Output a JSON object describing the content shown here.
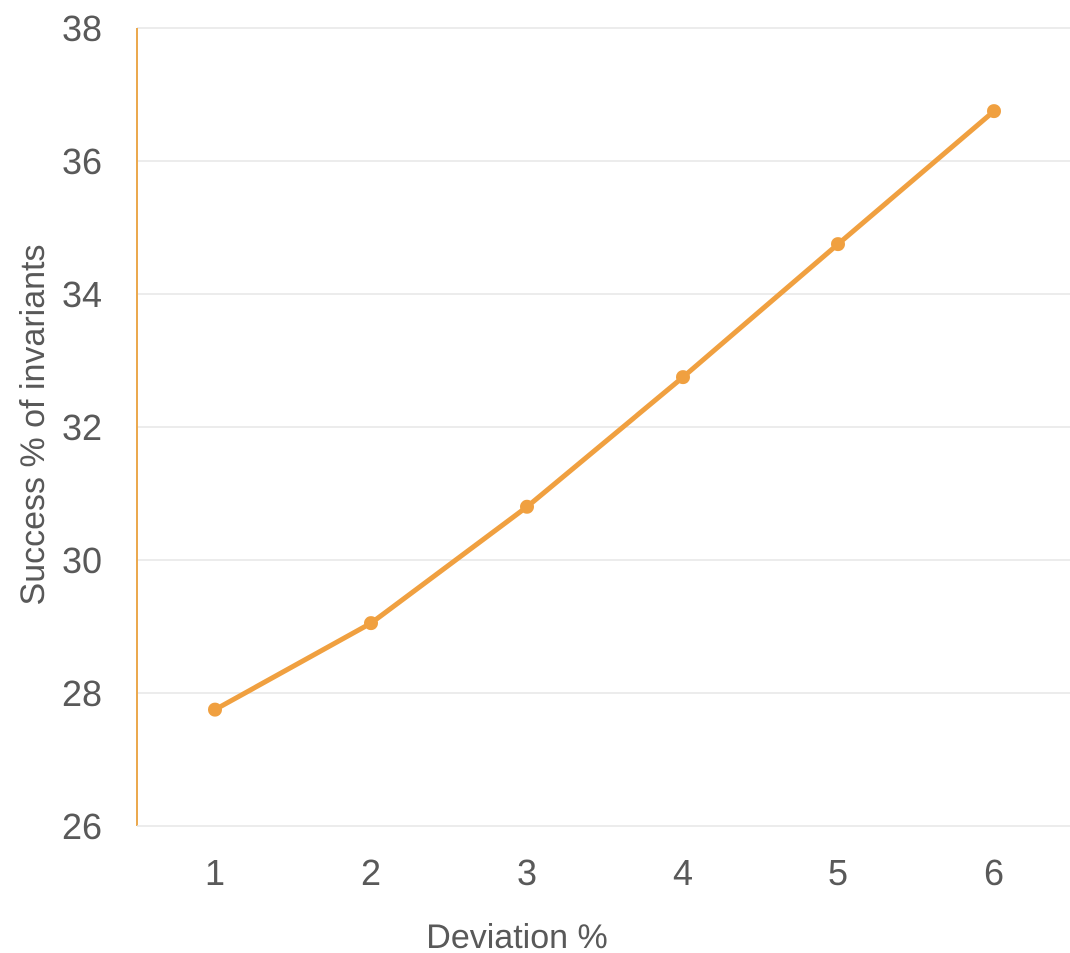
{
  "chart_data": {
    "type": "line",
    "x": [
      1,
      2,
      3,
      4,
      5,
      6
    ],
    "categories": [
      "1",
      "2",
      "3",
      "4",
      "5",
      "6"
    ],
    "series": [
      {
        "values": [
          27.75,
          29.05,
          30.8,
          32.75,
          34.75,
          36.75
        ]
      }
    ],
    "xlabel": "Deviation %",
    "ylabel": "Success % of invariants",
    "ylim": [
      26,
      38
    ],
    "yticks": [
      26,
      28,
      30,
      32,
      34,
      36,
      38
    ],
    "ytick_labels": [
      "26",
      "28",
      "30",
      "32",
      "34",
      "36",
      "38"
    ],
    "grid": "horizontal",
    "legend": "none"
  },
  "colors": {
    "series_line": "#F0A040",
    "axis_line": "#EBA94F",
    "gridline": "#E5E5E5",
    "text": "#595959"
  }
}
